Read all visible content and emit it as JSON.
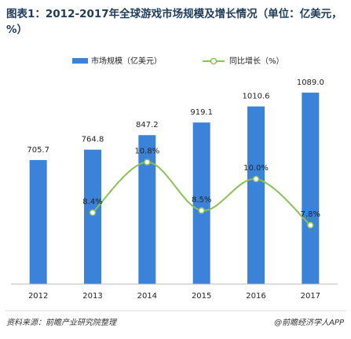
{
  "chart_data": {
    "type": "bar_line",
    "title": "图表1：2012-2017年全球游戏市场规模及增长情况（单位：亿美元，%）",
    "categories": [
      "2012",
      "2013",
      "2014",
      "2015",
      "2016",
      "2017"
    ],
    "series": [
      {
        "name": "市场规模（亿美元）",
        "color": "#3b82d9",
        "type": "bar",
        "values": [
          705.7,
          764.8,
          847.2,
          919.1,
          1010.6,
          1089.0
        ],
        "value_labels": [
          "705.7",
          "764.8",
          "847.2",
          "919.1",
          "1010.6",
          "1089.0"
        ]
      },
      {
        "name": "同比增长（%）",
        "color": "#8cbf55",
        "type": "line",
        "axis": "y2",
        "values": [
          null,
          8.4,
          10.8,
          8.5,
          10.0,
          7.8
        ],
        "value_labels": [
          null,
          "8.4%",
          "10.8%",
          "8.5%",
          "10.0%",
          "7.8%"
        ]
      }
    ],
    "ylim": [
      0,
      1100
    ],
    "y2lim": [
      5,
      14.2
    ],
    "source": "资料来源：前瞻产业研究院整理",
    "brand": "@前瞻经济学人APP"
  }
}
